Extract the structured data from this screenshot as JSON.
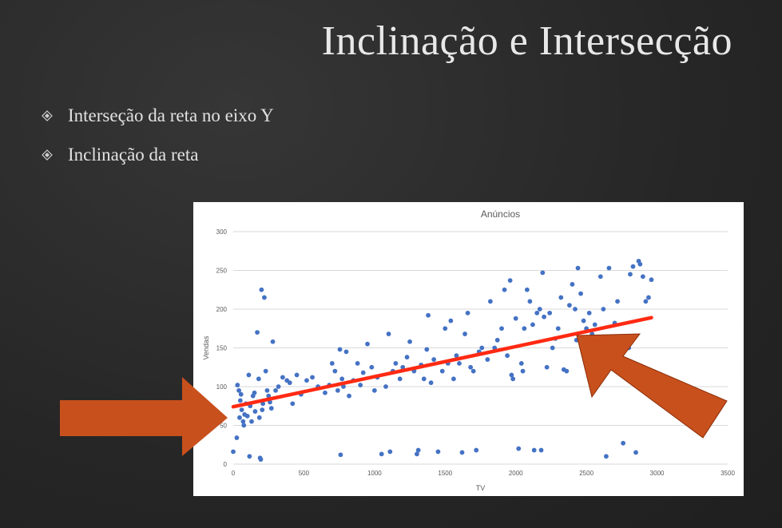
{
  "slide": {
    "title": "Inclinação e Intersecção",
    "bullets": [
      {
        "icon": "diamond-bullet-icon",
        "text": "Interseção da reta no eixo Y"
      },
      {
        "icon": "diamond-bullet-icon",
        "text": "Inclinação da reta"
      }
    ]
  },
  "colors": {
    "background": "#2a2a2a",
    "points": "#4472c4",
    "trendline": "#ff2a12",
    "arrows": "#c8501c"
  },
  "chart_data": {
    "type": "scatter",
    "title": "Anúncios",
    "xlabel": "TV",
    "ylabel": "Vendas",
    "xlim": [
      0,
      3500
    ],
    "ylim": [
      0,
      300
    ],
    "xticks": [
      0,
      500,
      1000,
      1500,
      2000,
      2500,
      3000,
      3500
    ],
    "yticks": [
      0,
      50,
      100,
      150,
      200,
      250,
      300
    ],
    "grid": "horizontal",
    "trendline": {
      "x": [
        0,
        2960
      ],
      "y": [
        74,
        189
      ]
    },
    "annotations": [
      {
        "type": "arrow",
        "points_to": "y-intercept"
      },
      {
        "type": "arrow",
        "points_to": "trendline slope"
      }
    ],
    "points": [
      [
        0,
        16
      ],
      [
        25,
        34
      ],
      [
        30,
        102
      ],
      [
        40,
        95
      ],
      [
        45,
        60
      ],
      [
        50,
        82
      ],
      [
        55,
        90
      ],
      [
        60,
        70
      ],
      [
        70,
        55
      ],
      [
        75,
        50
      ],
      [
        80,
        64
      ],
      [
        90,
        78
      ],
      [
        100,
        62
      ],
      [
        110,
        115
      ],
      [
        115,
        10
      ],
      [
        120,
        75
      ],
      [
        130,
        55
      ],
      [
        140,
        88
      ],
      [
        150,
        92
      ],
      [
        155,
        68
      ],
      [
        170,
        170
      ],
      [
        180,
        110
      ],
      [
        185,
        60
      ],
      [
        190,
        8
      ],
      [
        195,
        6
      ],
      [
        200,
        225
      ],
      [
        205,
        70
      ],
      [
        210,
        78
      ],
      [
        220,
        215
      ],
      [
        230,
        120
      ],
      [
        240,
        95
      ],
      [
        250,
        88
      ],
      [
        260,
        80
      ],
      [
        270,
        72
      ],
      [
        280,
        158
      ],
      [
        300,
        95
      ],
      [
        320,
        100
      ],
      [
        350,
        112
      ],
      [
        380,
        108
      ],
      [
        400,
        105
      ],
      [
        420,
        78
      ],
      [
        450,
        115
      ],
      [
        480,
        90
      ],
      [
        520,
        108
      ],
      [
        560,
        112
      ],
      [
        600,
        100
      ],
      [
        650,
        92
      ],
      [
        680,
        102
      ],
      [
        700,
        130
      ],
      [
        720,
        120
      ],
      [
        740,
        95
      ],
      [
        755,
        148
      ],
      [
        760,
        12
      ],
      [
        770,
        110
      ],
      [
        780,
        100
      ],
      [
        800,
        145
      ],
      [
        820,
        88
      ],
      [
        850,
        108
      ],
      [
        880,
        130
      ],
      [
        900,
        102
      ],
      [
        920,
        118
      ],
      [
        950,
        155
      ],
      [
        980,
        125
      ],
      [
        1000,
        95
      ],
      [
        1020,
        112
      ],
      [
        1050,
        13
      ],
      [
        1080,
        100
      ],
      [
        1100,
        168
      ],
      [
        1110,
        16
      ],
      [
        1130,
        120
      ],
      [
        1150,
        130
      ],
      [
        1180,
        110
      ],
      [
        1200,
        125
      ],
      [
        1230,
        138
      ],
      [
        1250,
        158
      ],
      [
        1280,
        120
      ],
      [
        1300,
        13
      ],
      [
        1310,
        18
      ],
      [
        1330,
        128
      ],
      [
        1350,
        110
      ],
      [
        1370,
        148
      ],
      [
        1380,
        192
      ],
      [
        1400,
        105
      ],
      [
        1420,
        135
      ],
      [
        1450,
        16
      ],
      [
        1480,
        120
      ],
      [
        1500,
        175
      ],
      [
        1520,
        130
      ],
      [
        1540,
        185
      ],
      [
        1560,
        110
      ],
      [
        1580,
        140
      ],
      [
        1600,
        130
      ],
      [
        1620,
        15
      ],
      [
        1640,
        168
      ],
      [
        1660,
        195
      ],
      [
        1680,
        125
      ],
      [
        1700,
        120
      ],
      [
        1720,
        18
      ],
      [
        1740,
        145
      ],
      [
        1760,
        150
      ],
      [
        1800,
        135
      ],
      [
        1820,
        210
      ],
      [
        1850,
        150
      ],
      [
        1870,
        160
      ],
      [
        1900,
        175
      ],
      [
        1920,
        225
      ],
      [
        1940,
        140
      ],
      [
        1960,
        237
      ],
      [
        1970,
        115
      ],
      [
        1980,
        110
      ],
      [
        2000,
        188
      ],
      [
        2020,
        20
      ],
      [
        2040,
        130
      ],
      [
        2050,
        120
      ],
      [
        2060,
        175
      ],
      [
        2080,
        225
      ],
      [
        2100,
        210
      ],
      [
        2120,
        180
      ],
      [
        2130,
        18
      ],
      [
        2150,
        195
      ],
      [
        2170,
        200
      ],
      [
        2180,
        18
      ],
      [
        2190,
        247
      ],
      [
        2200,
        190
      ],
      [
        2220,
        125
      ],
      [
        2240,
        195
      ],
      [
        2260,
        150
      ],
      [
        2280,
        162
      ],
      [
        2300,
        175
      ],
      [
        2320,
        215
      ],
      [
        2340,
        122
      ],
      [
        2360,
        120
      ],
      [
        2380,
        205
      ],
      [
        2400,
        232
      ],
      [
        2420,
        200
      ],
      [
        2430,
        160
      ],
      [
        2440,
        253
      ],
      [
        2460,
        220
      ],
      [
        2480,
        185
      ],
      [
        2500,
        175
      ],
      [
        2520,
        195
      ],
      [
        2540,
        168
      ],
      [
        2560,
        180
      ],
      [
        2580,
        150
      ],
      [
        2600,
        242
      ],
      [
        2620,
        200
      ],
      [
        2640,
        10
      ],
      [
        2660,
        253
      ],
      [
        2700,
        182
      ],
      [
        2720,
        210
      ],
      [
        2760,
        27
      ],
      [
        2780,
        165
      ],
      [
        2800,
        150
      ],
      [
        2810,
        245
      ],
      [
        2830,
        255
      ],
      [
        2850,
        15
      ],
      [
        2870,
        262
      ],
      [
        2880,
        258
      ],
      [
        2900,
        242
      ],
      [
        2920,
        210
      ],
      [
        2940,
        215
      ],
      [
        2960,
        238
      ]
    ]
  }
}
